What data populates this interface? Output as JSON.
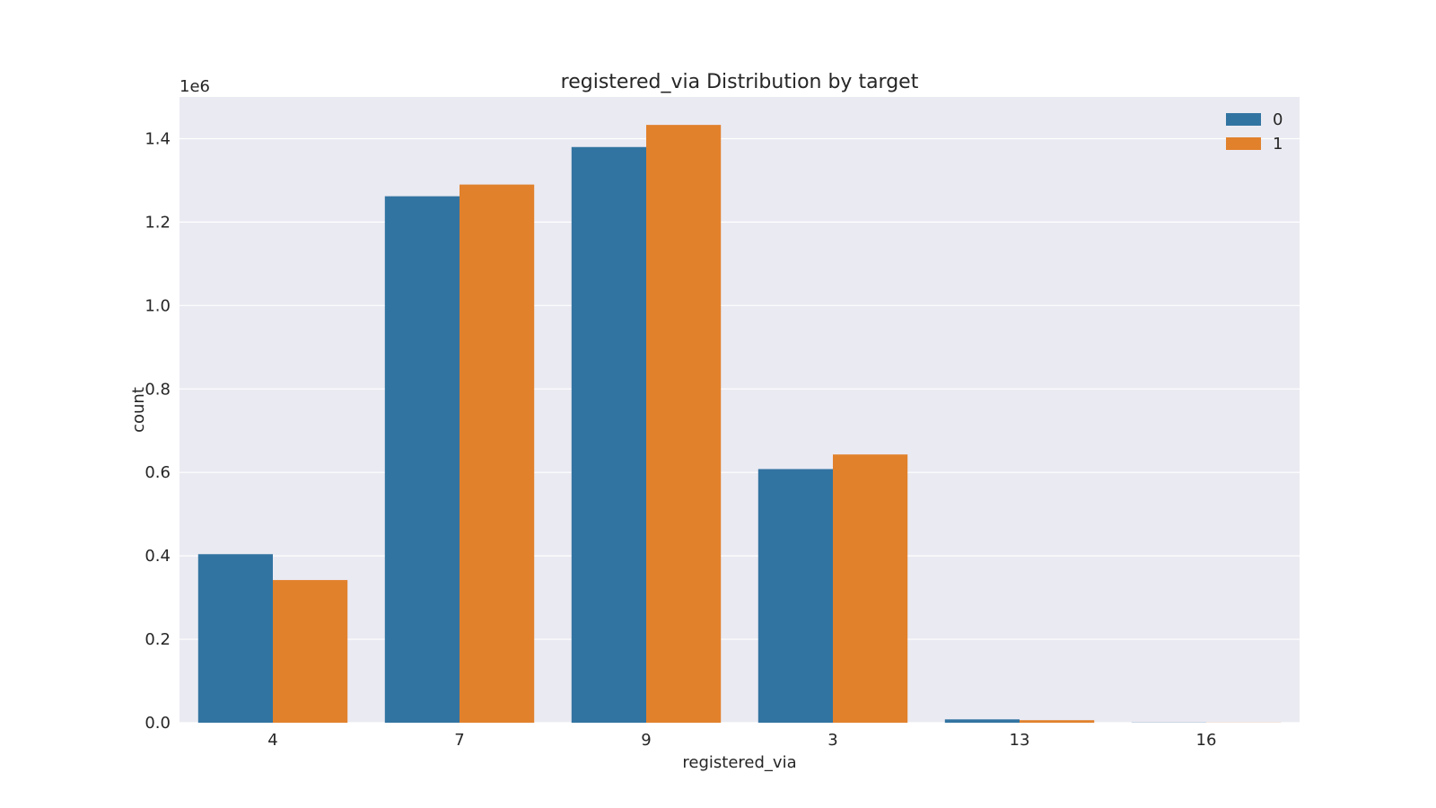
{
  "chart_data": {
    "type": "bar",
    "title": "registered_via Distribution by target",
    "xlabel": "registered_via",
    "ylabel": "count",
    "y_scale_label": "1e6",
    "categories": [
      "4",
      "7",
      "9",
      "3",
      "13",
      "16"
    ],
    "series": [
      {
        "name": "0",
        "color": "#3274a1",
        "values": [
          404000,
          1262000,
          1380000,
          608000,
          8000,
          500
        ]
      },
      {
        "name": "1",
        "color": "#e1812c",
        "values": [
          342000,
          1290000,
          1433000,
          643000,
          6000,
          300
        ]
      }
    ],
    "ylim": [
      0,
      1500000
    ],
    "yticks": [
      0,
      200000,
      400000,
      600000,
      800000,
      1000000,
      1200000,
      1400000
    ],
    "ytick_labels": [
      "0.0",
      "0.2",
      "0.4",
      "0.6",
      "0.8",
      "1.0",
      "1.2",
      "1.4"
    ],
    "grid": true,
    "legend_position": "top-right",
    "plot_background": "#eaeaf2"
  }
}
